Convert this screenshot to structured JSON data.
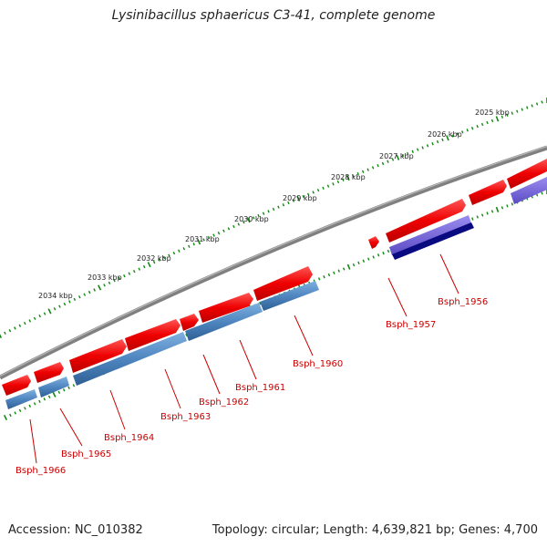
{
  "title": "Lysinibacillus sphaericus C3-41, complete genome",
  "accession": "Accession: NC_010382",
  "summary": "Topology: circular; Length: 4,639,821 bp; Genes: 4,700",
  "colors": {
    "backbone": "#808080",
    "ticks": "#118811",
    "forward_gene": "#ee0000",
    "reverse_gene_blue": "#4f86c0",
    "reverse_gene_purple": "#6a5acd",
    "reverse_gene_navy": "#0a0a80",
    "gene_label": "#cc0000"
  },
  "kbp_labels": [
    "2025 kbp",
    "2026 kbp",
    "2027 kbp",
    "2028 kbp",
    "2029 kbp",
    "2030 kbp",
    "2031 kbp",
    "2032 kbp",
    "2033 kbp",
    "2034 kbp"
  ],
  "gene_labels": [
    "Bsph_1956",
    "Bsph_1957",
    "Bsph_1960",
    "Bsph_1961",
    "Bsph_1962",
    "Bsph_1963",
    "Bsph_1964",
    "Bsph_1965",
    "Bsph_1966"
  ]
}
